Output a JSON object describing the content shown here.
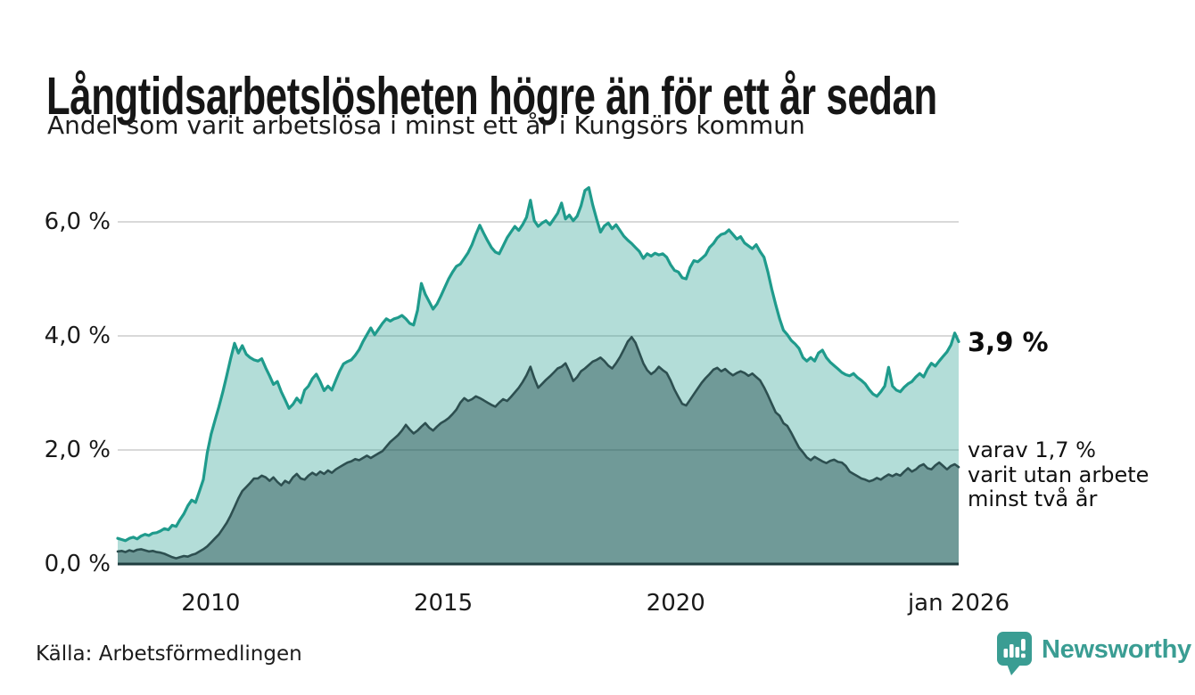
{
  "header": {
    "title": "Långtidsarbetslösheten högre än för ett år sedan",
    "subtitle": "Andel som varit arbetslösa i minst ett år i Kungsörs kommun"
  },
  "chart_data": {
    "type": "area",
    "title": "Långtidsarbetslösheten högre än för ett år sedan",
    "subtitle": "Andel som varit arbetslösa i minst ett år i Kungsörs kommun",
    "unit": "%",
    "ylim": [
      0,
      7
    ],
    "grid": true,
    "gridline_color": "#d9d9d9",
    "axis_color": "#1f3d3f",
    "x_range": {
      "start": 2008.0,
      "end": 2026.083,
      "interval": "monthly",
      "first_point": "jan 2008",
      "last_point": "jan 2026"
    },
    "y_ticks": [
      {
        "value": 0,
        "label": "0,0 %"
      },
      {
        "value": 2,
        "label": "2,0 %"
      },
      {
        "value": 4,
        "label": "4,0 %"
      },
      {
        "value": 6,
        "label": "6,0 %"
      }
    ],
    "x_ticks": [
      {
        "value": 2010,
        "label": "2010"
      },
      {
        "value": 2015,
        "label": "2015"
      },
      {
        "value": 2020,
        "label": "2020"
      },
      {
        "value": 2026.083,
        "label": "jan 2026"
      }
    ],
    "series": [
      {
        "name": "Andel arbetslösa minst ett år",
        "color": "#1f9b8c",
        "fill": "rgba(31,155,140,0.34)",
        "stroke_width": 3.2,
        "last_value": 3.9,
        "values": [
          0.45,
          0.43,
          0.41,
          0.45,
          0.47,
          0.44,
          0.49,
          0.52,
          0.5,
          0.54,
          0.55,
          0.58,
          0.62,
          0.6,
          0.68,
          0.66,
          0.78,
          0.88,
          1.02,
          1.12,
          1.08,
          1.28,
          1.48,
          1.95,
          2.28,
          2.52,
          2.76,
          3.02,
          3.3,
          3.6,
          3.87,
          3.7,
          3.83,
          3.68,
          3.62,
          3.58,
          3.56,
          3.6,
          3.44,
          3.3,
          3.15,
          3.2,
          3.02,
          2.88,
          2.73,
          2.8,
          2.91,
          2.83,
          3.05,
          3.12,
          3.25,
          3.33,
          3.2,
          3.04,
          3.12,
          3.05,
          3.22,
          3.38,
          3.51,
          3.55,
          3.58,
          3.66,
          3.76,
          3.9,
          4.02,
          4.14,
          4.02,
          4.12,
          4.22,
          4.3,
          4.26,
          4.3,
          4.32,
          4.36,
          4.3,
          4.22,
          4.19,
          4.45,
          4.92,
          4.73,
          4.6,
          4.47,
          4.56,
          4.7,
          4.85,
          5.0,
          5.12,
          5.22,
          5.26,
          5.36,
          5.46,
          5.6,
          5.78,
          5.94,
          5.8,
          5.67,
          5.55,
          5.47,
          5.44,
          5.58,
          5.72,
          5.82,
          5.92,
          5.85,
          5.95,
          6.08,
          6.38,
          6.02,
          5.92,
          5.98,
          6.02,
          5.95,
          6.05,
          6.15,
          6.33,
          6.05,
          6.12,
          6.02,
          6.1,
          6.28,
          6.55,
          6.6,
          6.3,
          6.05,
          5.82,
          5.93,
          5.98,
          5.88,
          5.95,
          5.85,
          5.75,
          5.68,
          5.62,
          5.55,
          5.48,
          5.36,
          5.44,
          5.4,
          5.45,
          5.42,
          5.44,
          5.38,
          5.25,
          5.15,
          5.12,
          5.02,
          5.0,
          5.2,
          5.32,
          5.3,
          5.36,
          5.42,
          5.55,
          5.62,
          5.72,
          5.78,
          5.8,
          5.86,
          5.78,
          5.7,
          5.74,
          5.63,
          5.58,
          5.53,
          5.6,
          5.48,
          5.38,
          5.12,
          4.82,
          4.55,
          4.3,
          4.1,
          4.02,
          3.92,
          3.86,
          3.78,
          3.62,
          3.56,
          3.62,
          3.56,
          3.7,
          3.75,
          3.62,
          3.54,
          3.48,
          3.42,
          3.36,
          3.32,
          3.3,
          3.34,
          3.27,
          3.22,
          3.16,
          3.06,
          2.98,
          2.94,
          3.02,
          3.12,
          3.45,
          3.12,
          3.05,
          3.02,
          3.1,
          3.16,
          3.2,
          3.28,
          3.34,
          3.28,
          3.42,
          3.52,
          3.47,
          3.56,
          3.64,
          3.72,
          3.84,
          4.05,
          3.9
        ]
      },
      {
        "name": "varav utan arbete minst två år",
        "color": "#2d4f50",
        "fill": "rgba(24,64,68,0.43)",
        "stroke_width": 2.6,
        "last_value": 1.7,
        "values": [
          0.22,
          0.23,
          0.21,
          0.24,
          0.22,
          0.25,
          0.26,
          0.24,
          0.22,
          0.23,
          0.21,
          0.2,
          0.18,
          0.15,
          0.12,
          0.1,
          0.12,
          0.14,
          0.13,
          0.16,
          0.18,
          0.22,
          0.26,
          0.31,
          0.38,
          0.45,
          0.52,
          0.62,
          0.72,
          0.85,
          1.0,
          1.15,
          1.28,
          1.35,
          1.42,
          1.5,
          1.5,
          1.55,
          1.52,
          1.46,
          1.52,
          1.44,
          1.38,
          1.46,
          1.42,
          1.52,
          1.58,
          1.5,
          1.48,
          1.55,
          1.6,
          1.56,
          1.62,
          1.58,
          1.64,
          1.6,
          1.66,
          1.7,
          1.74,
          1.78,
          1.8,
          1.84,
          1.82,
          1.86,
          1.9,
          1.86,
          1.9,
          1.94,
          1.98,
          2.06,
          2.14,
          2.2,
          2.26,
          2.34,
          2.44,
          2.36,
          2.29,
          2.34,
          2.41,
          2.47,
          2.39,
          2.34,
          2.41,
          2.47,
          2.51,
          2.56,
          2.63,
          2.71,
          2.83,
          2.91,
          2.86,
          2.89,
          2.94,
          2.91,
          2.87,
          2.83,
          2.79,
          2.76,
          2.83,
          2.89,
          2.86,
          2.93,
          3.01,
          3.09,
          3.19,
          3.31,
          3.46,
          3.26,
          3.09,
          3.16,
          3.23,
          3.29,
          3.36,
          3.43,
          3.46,
          3.52,
          3.38,
          3.21,
          3.28,
          3.38,
          3.43,
          3.49,
          3.55,
          3.58,
          3.62,
          3.56,
          3.48,
          3.43,
          3.52,
          3.63,
          3.76,
          3.9,
          3.98,
          3.88,
          3.7,
          3.52,
          3.4,
          3.33,
          3.38,
          3.46,
          3.4,
          3.35,
          3.22,
          3.06,
          2.93,
          2.81,
          2.78,
          2.88,
          2.98,
          3.08,
          3.18,
          3.26,
          3.33,
          3.41,
          3.44,
          3.38,
          3.42,
          3.36,
          3.31,
          3.35,
          3.38,
          3.35,
          3.3,
          3.34,
          3.28,
          3.22,
          3.1,
          2.96,
          2.81,
          2.66,
          2.6,
          2.47,
          2.42,
          2.3,
          2.17,
          2.04,
          1.96,
          1.87,
          1.82,
          1.88,
          1.84,
          1.8,
          1.77,
          1.81,
          1.83,
          1.79,
          1.78,
          1.72,
          1.62,
          1.58,
          1.54,
          1.5,
          1.48,
          1.45,
          1.47,
          1.51,
          1.48,
          1.53,
          1.57,
          1.54,
          1.58,
          1.55,
          1.62,
          1.68,
          1.62,
          1.66,
          1.72,
          1.75,
          1.68,
          1.66,
          1.73,
          1.78,
          1.72,
          1.66,
          1.72,
          1.75,
          1.7
        ]
      }
    ],
    "annotations": {
      "total": {
        "label": "3,9 %"
      },
      "secondary": {
        "lines": [
          "varav 1,7 %",
          "varit utan arbete",
          "minst två år"
        ]
      }
    }
  },
  "footer": {
    "source": "Källa: Arbetsförmedlingen",
    "brand": "Newsworthy",
    "brand_color": "#3a9d93"
  }
}
